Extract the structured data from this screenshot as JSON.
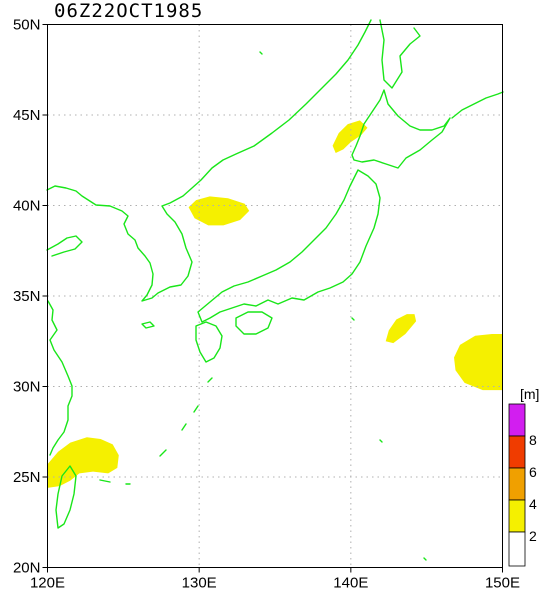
{
  "title": "06Z22OCT1985",
  "colors": {
    "coast": "#19e619",
    "band_2_4": "#f5f000",
    "band_4_6": "#f0a000",
    "band_6_8": "#f03c00",
    "band_8_plus": "#d21ef0",
    "frame": "#000000"
  },
  "map": {
    "lon_range": [
      120,
      150
    ],
    "lat_range": [
      20,
      50
    ],
    "lon_ticks": [
      {
        "value": 120,
        "label": "120E"
      },
      {
        "value": 130,
        "label": "130E"
      },
      {
        "value": 140,
        "label": "140E"
      },
      {
        "value": 150,
        "label": "150E"
      }
    ],
    "lat_ticks": [
      {
        "value": 20,
        "label": "20N"
      },
      {
        "value": 25,
        "label": "25N"
      },
      {
        "value": 30,
        "label": "30N"
      },
      {
        "value": 35,
        "label": "35N"
      },
      {
        "value": 40,
        "label": "40N"
      },
      {
        "value": 45,
        "label": "45N"
      },
      {
        "value": 50,
        "label": "50N"
      }
    ],
    "grid_lines": "dotted",
    "fields": [
      {
        "name": "sea-of-japan-north",
        "level": "2-4",
        "points": [
          [
            129.3,
            39.9
          ],
          [
            129.8,
            40.3
          ],
          [
            130.7,
            40.5
          ],
          [
            131.9,
            40.4
          ],
          [
            133.0,
            40.1
          ],
          [
            133.3,
            39.7
          ],
          [
            132.7,
            39.2
          ],
          [
            131.6,
            38.9
          ],
          [
            130.6,
            38.9
          ],
          [
            129.7,
            39.3
          ]
        ]
      },
      {
        "name": "off-hokkaido-west",
        "level": "2-4",
        "points": [
          [
            138.8,
            43.3
          ],
          [
            139.2,
            44.0
          ],
          [
            139.8,
            44.5
          ],
          [
            140.6,
            44.7
          ],
          [
            141.1,
            44.3
          ],
          [
            140.7,
            43.9
          ],
          [
            140.0,
            43.5
          ],
          [
            139.5,
            43.1
          ],
          [
            139.0,
            42.9
          ]
        ]
      },
      {
        "name": "south-of-honshu",
        "level": "2-4",
        "points": [
          [
            142.3,
            32.5
          ],
          [
            142.5,
            33.1
          ],
          [
            143.0,
            33.7
          ],
          [
            143.7,
            34.0
          ],
          [
            144.2,
            34.0
          ],
          [
            144.3,
            33.6
          ],
          [
            143.6,
            32.9
          ],
          [
            142.8,
            32.4
          ]
        ]
      },
      {
        "name": "east-pacific",
        "level": "2-4",
        "points": [
          [
            150,
            29.8
          ],
          [
            148.7,
            29.8
          ],
          [
            147.5,
            30.2
          ],
          [
            146.9,
            30.9
          ],
          [
            146.8,
            31.6
          ],
          [
            147.2,
            32.3
          ],
          [
            148.2,
            32.8
          ],
          [
            149.3,
            32.9
          ],
          [
            150,
            32.9
          ]
        ]
      },
      {
        "name": "taiwan-east",
        "level": "2-4",
        "points": [
          [
            120,
            24.4
          ],
          [
            120,
            25.7
          ],
          [
            120.7,
            26.4
          ],
          [
            121.5,
            26.9
          ],
          [
            122.6,
            27.2
          ],
          [
            123.5,
            27.1
          ],
          [
            124.3,
            26.8
          ],
          [
            124.7,
            26.2
          ],
          [
            124.6,
            25.5
          ],
          [
            124.0,
            25.2
          ],
          [
            123.0,
            25.3
          ],
          [
            122.1,
            25.2
          ],
          [
            121.5,
            24.8
          ],
          [
            120.8,
            24.5
          ]
        ]
      }
    ]
  },
  "colorbar": {
    "unit_label": "[m]",
    "levels": [
      "2",
      "4",
      "6",
      "8"
    ]
  }
}
